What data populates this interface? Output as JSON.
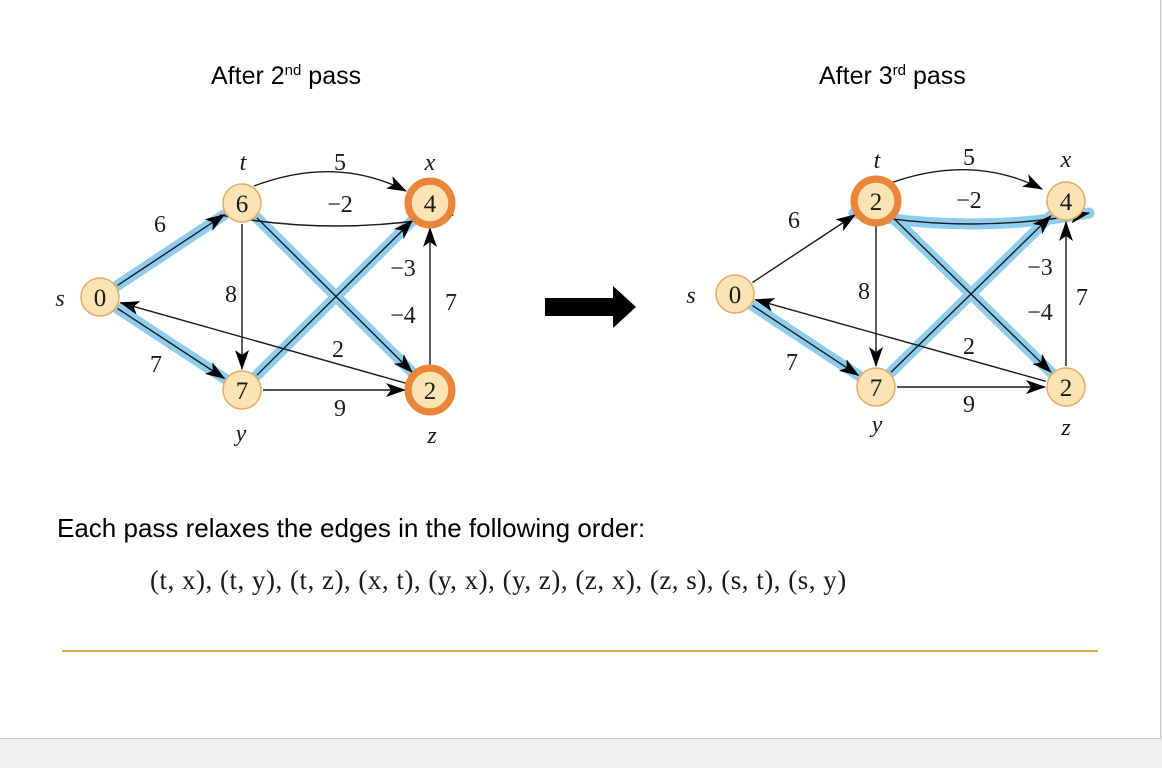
{
  "titles": {
    "left": {
      "prefix": "After 2",
      "sup": "nd",
      "suffix": " pass"
    },
    "right": {
      "prefix": "After 3",
      "sup": "rd",
      "suffix": " pass"
    }
  },
  "graphs": [
    {
      "id": "after-2nd-pass",
      "vertices": [
        {
          "id": "s",
          "name": "s",
          "dist": "0",
          "updated": false
        },
        {
          "id": "t",
          "name": "t",
          "dist": "6",
          "updated": false
        },
        {
          "id": "x",
          "name": "x",
          "dist": "4",
          "updated": true
        },
        {
          "id": "y",
          "name": "y",
          "dist": "7",
          "updated": false
        },
        {
          "id": "z",
          "name": "z",
          "dist": "2",
          "updated": true
        }
      ],
      "edges": [
        {
          "from": "t",
          "to": "x",
          "weight": "5",
          "shortest_path_tree": false
        },
        {
          "from": "x",
          "to": "t",
          "weight": "−2",
          "shortest_path_tree": false
        },
        {
          "from": "s",
          "to": "t",
          "weight": "6",
          "shortest_path_tree": true
        },
        {
          "from": "t",
          "to": "y",
          "weight": "8",
          "shortest_path_tree": false
        },
        {
          "from": "t",
          "to": "z",
          "weight": "−4",
          "shortest_path_tree": true
        },
        {
          "from": "y",
          "to": "x",
          "weight": "−3",
          "shortest_path_tree": true
        },
        {
          "from": "z",
          "to": "x",
          "weight": "7",
          "shortest_path_tree": false
        },
        {
          "from": "z",
          "to": "s",
          "weight": "2",
          "shortest_path_tree": false
        },
        {
          "from": "s",
          "to": "y",
          "weight": "7",
          "shortest_path_tree": true
        },
        {
          "from": "y",
          "to": "z",
          "weight": "9",
          "shortest_path_tree": false
        }
      ]
    },
    {
      "id": "after-3rd-pass",
      "vertices": [
        {
          "id": "s",
          "name": "s",
          "dist": "0",
          "updated": false
        },
        {
          "id": "t",
          "name": "t",
          "dist": "2",
          "updated": true
        },
        {
          "id": "x",
          "name": "x",
          "dist": "4",
          "updated": false
        },
        {
          "id": "y",
          "name": "y",
          "dist": "7",
          "updated": false
        },
        {
          "id": "z",
          "name": "z",
          "dist": "2",
          "updated": false
        }
      ],
      "edges": [
        {
          "from": "t",
          "to": "x",
          "weight": "5",
          "shortest_path_tree": false
        },
        {
          "from": "x",
          "to": "t",
          "weight": "−2",
          "shortest_path_tree": true
        },
        {
          "from": "s",
          "to": "t",
          "weight": "6",
          "shortest_path_tree": false
        },
        {
          "from": "t",
          "to": "y",
          "weight": "8",
          "shortest_path_tree": false
        },
        {
          "from": "t",
          "to": "z",
          "weight": "−4",
          "shortest_path_tree": true
        },
        {
          "from": "y",
          "to": "x",
          "weight": "−3",
          "shortest_path_tree": true
        },
        {
          "from": "z",
          "to": "x",
          "weight": "7",
          "shortest_path_tree": false
        },
        {
          "from": "z",
          "to": "s",
          "weight": "2",
          "shortest_path_tree": false
        },
        {
          "from": "s",
          "to": "y",
          "weight": "7",
          "shortest_path_tree": true
        },
        {
          "from": "y",
          "to": "z",
          "weight": "9",
          "shortest_path_tree": false
        }
      ]
    }
  ],
  "caption": "Each pass relaxes the edges in the following order:",
  "edge_order": "(t, x), (t, y), (t, z), (x, t), (y, x), (y, z), (z, x), (z, s), (s, t), (s, y)",
  "colors": {
    "node_fill": "#fbe3b4",
    "node_stroke": "#e8a965",
    "updated_ring": "#e9863b",
    "highlight": "#8fcdef",
    "edge": "#1a1a1a",
    "arrow": "#000000",
    "rule": "#d4a93a"
  }
}
